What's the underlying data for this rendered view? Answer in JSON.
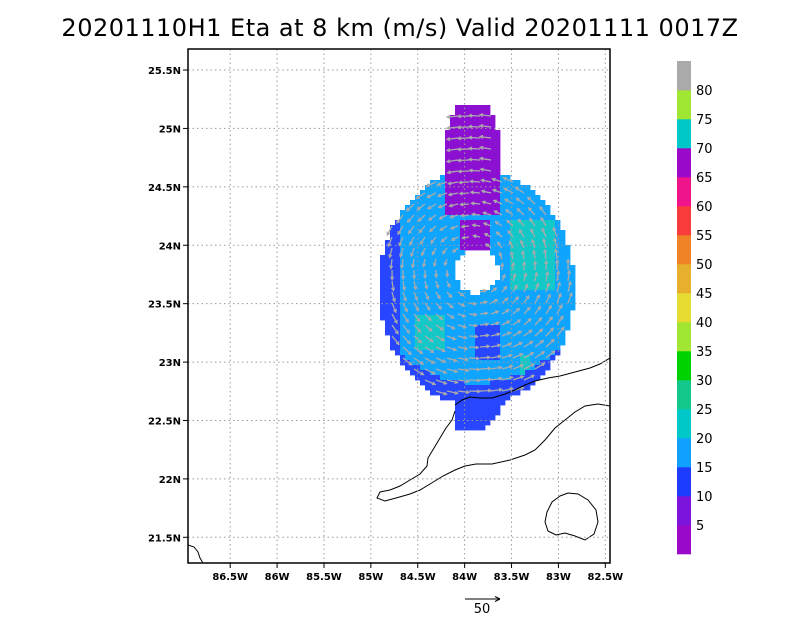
{
  "title": "20201110H1 Eta at 8 km (m/s) Valid 20201111 0017Z",
  "chart_data": {
    "type": "heatmap",
    "title": "20201110H1 Eta at 8 km (m/s) Valid 20201111 0017Z",
    "xlabel": "",
    "ylabel": "",
    "xlim": [
      -86.95,
      -82.45
    ],
    "ylim": [
      21.28,
      25.68
    ],
    "x_ticks": [
      {
        "value": -86.5,
        "label": "86.5W"
      },
      {
        "value": -86.0,
        "label": "86W"
      },
      {
        "value": -85.5,
        "label": "85.5W"
      },
      {
        "value": -85.0,
        "label": "85W"
      },
      {
        "value": -84.5,
        "label": "84.5W"
      },
      {
        "value": -84.0,
        "label": "84W"
      },
      {
        "value": -83.5,
        "label": "83.5W"
      },
      {
        "value": -83.0,
        "label": "83W"
      },
      {
        "value": -82.5,
        "label": "82.5W"
      }
    ],
    "y_ticks": [
      {
        "value": 21.5,
        "label": "21.5N"
      },
      {
        "value": 22.0,
        "label": "22N"
      },
      {
        "value": 22.5,
        "label": "22.5N"
      },
      {
        "value": 23.0,
        "label": "23N"
      },
      {
        "value": 23.5,
        "label": "23.5N"
      },
      {
        "value": 24.0,
        "label": "24N"
      },
      {
        "value": 24.5,
        "label": "24.5N"
      },
      {
        "value": 25.0,
        "label": "25N"
      },
      {
        "value": 25.5,
        "label": "25.5N"
      }
    ],
    "grid": true,
    "colorbar": {
      "labels": [
        "5",
        "10",
        "15",
        "20",
        "25",
        "30",
        "35",
        "40",
        "45",
        "50",
        "55",
        "60",
        "65",
        "70",
        "75",
        "80"
      ],
      "colors": [
        "#9a0ac8",
        "#7d14dc",
        "#1e3cff",
        "#10a0ff",
        "#00c8c8",
        "#14c88c",
        "#00d200",
        "#a0e632",
        "#e6dc32",
        "#e6af2d",
        "#f08228",
        "#fa3c3c",
        "#f0148c",
        "#9a0ac8",
        "#00c8c8",
        "#a0e632",
        "#aaaaaa"
      ]
    },
    "field_colors": {
      "purple": "#8c10d2",
      "blue": "#2846ff",
      "light_blue": "#0fa5ff",
      "cyan": "#14c8c8",
      "teal": "#1ec88c",
      "vector": "#aaaaaa",
      "coast": "#000000"
    },
    "reference_vector": {
      "label": "50",
      "magnitude": 50,
      "units": "m/s"
    },
    "storm_center": {
      "lon": -83.9,
      "lat": 23.8
    }
  }
}
